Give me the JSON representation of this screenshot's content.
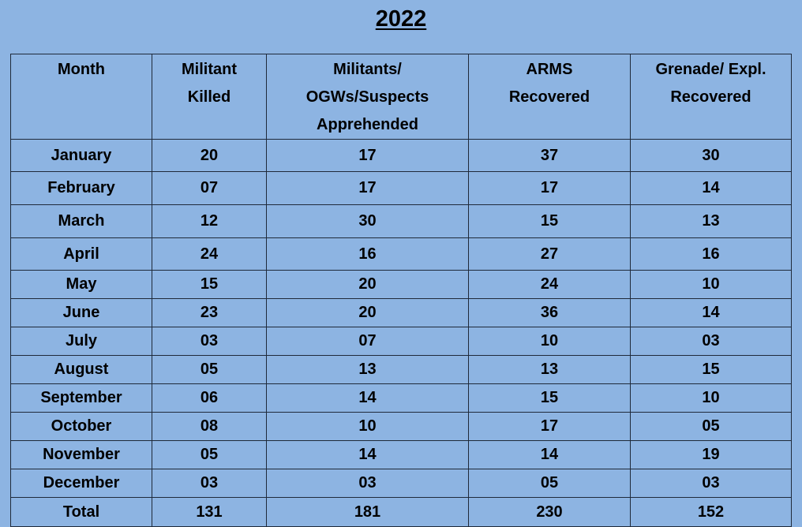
{
  "title": "2022",
  "table": {
    "headers": [
      [
        "Month"
      ],
      [
        "Militant",
        "Killed"
      ],
      [
        "Militants/",
        "OGWs/Suspects",
        "Apprehended"
      ],
      [
        "ARMS",
        "Recovered"
      ],
      [
        "Grenade/ Expl.",
        "Recovered"
      ]
    ],
    "rows": [
      [
        "January",
        "20",
        "17",
        "37",
        "30"
      ],
      [
        "February",
        "07",
        "17",
        "17",
        "14"
      ],
      [
        "March",
        "12",
        "30",
        "15",
        "13"
      ],
      [
        "April",
        "24",
        "16",
        "27",
        "16"
      ],
      [
        "May",
        "15",
        "20",
        "24",
        "10"
      ],
      [
        "June",
        "23",
        "20",
        "36",
        "14"
      ],
      [
        "July",
        "03",
        "07",
        "10",
        "03"
      ],
      [
        "August",
        "05",
        "13",
        "13",
        "15"
      ],
      [
        "September",
        "06",
        "14",
        "15",
        "10"
      ],
      [
        "October",
        "08",
        "10",
        "17",
        "05"
      ],
      [
        "November",
        "05",
        "14",
        "14",
        "19"
      ],
      [
        "December",
        "03",
        "03",
        "05",
        "03"
      ],
      [
        "Total",
        "131",
        "181",
        "230",
        "152"
      ]
    ]
  }
}
